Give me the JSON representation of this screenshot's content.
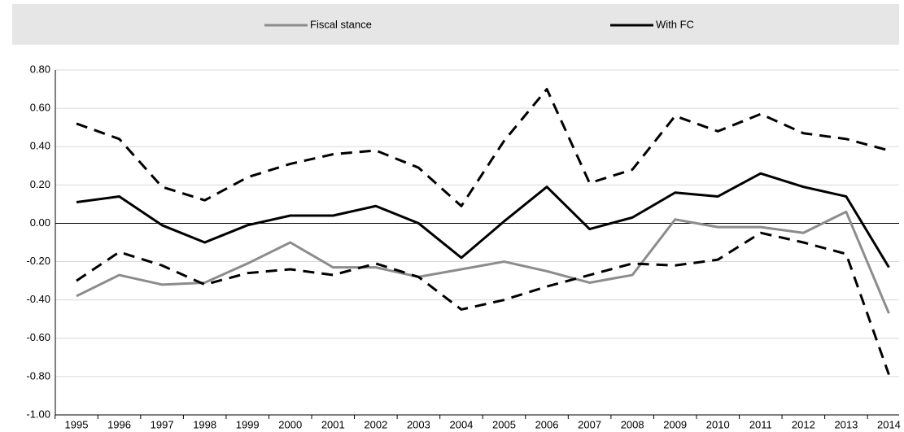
{
  "chart_data": {
    "type": "line",
    "categories": [
      "1995",
      "1996",
      "1997",
      "1998",
      "1999",
      "2000",
      "2001",
      "2002",
      "2003",
      "2004",
      "2005",
      "2006",
      "2007",
      "2008",
      "2009",
      "2010",
      "2011",
      "2012",
      "2013",
      "2014"
    ],
    "series": [
      {
        "name": "Fiscal stance",
        "color": "#8c8c8c",
        "values": [
          -0.38,
          -0.27,
          -0.32,
          -0.31,
          -0.21,
          -0.1,
          -0.23,
          -0.23,
          -0.28,
          -0.24,
          -0.2,
          -0.25,
          -0.31,
          -0.27,
          0.02,
          -0.02,
          -0.02,
          -0.05,
          0.06,
          -0.47
        ]
      },
      {
        "name": "With FC",
        "color": "#000000",
        "values": [
          0.11,
          0.14,
          -0.01,
          -0.1,
          -0.01,
          0.04,
          0.04,
          0.09,
          0.0,
          -0.18,
          0.01,
          0.19,
          -0.03,
          0.03,
          0.16,
          0.14,
          0.26,
          0.19,
          0.14,
          -0.23
        ]
      },
      {
        "color": "#000000",
        "dashed": true,
        "values": [
          0.52,
          0.44,
          0.19,
          0.12,
          0.24,
          0.31,
          0.36,
          0.38,
          0.29,
          0.09,
          0.43,
          0.7,
          0.21,
          0.28,
          0.56,
          0.48,
          0.57,
          0.47,
          0.44,
          0.38
        ]
      },
      {
        "color": "#000000",
        "dashed": true,
        "values": [
          -0.3,
          -0.15,
          -0.22,
          -0.32,
          -0.26,
          -0.24,
          -0.27,
          -0.21,
          -0.28,
          -0.45,
          -0.4,
          -0.33,
          -0.27,
          -0.21,
          -0.22,
          -0.19,
          -0.05,
          -0.1,
          -0.16,
          -0.79
        ]
      }
    ],
    "ylim": [
      -1.0,
      0.8
    ],
    "yticks": [
      {
        "value": -1.0,
        "label": "-1.00"
      },
      {
        "value": -0.8,
        "label": "-0.80"
      },
      {
        "value": -0.6,
        "label": "-0.60"
      },
      {
        "value": -0.4,
        "label": "-0.40"
      },
      {
        "value": -0.2,
        "label": "-0.20"
      },
      {
        "value": 0,
        "label": "0.00"
      },
      {
        "value": 0.2,
        "label": "0.20"
      },
      {
        "value": 0.4,
        "label": "0.40"
      },
      {
        "value": 0.6,
        "label": "0.60"
      },
      {
        "value": 0.8,
        "label": "0.80"
      }
    ],
    "grid": true,
    "legend": "top"
  }
}
